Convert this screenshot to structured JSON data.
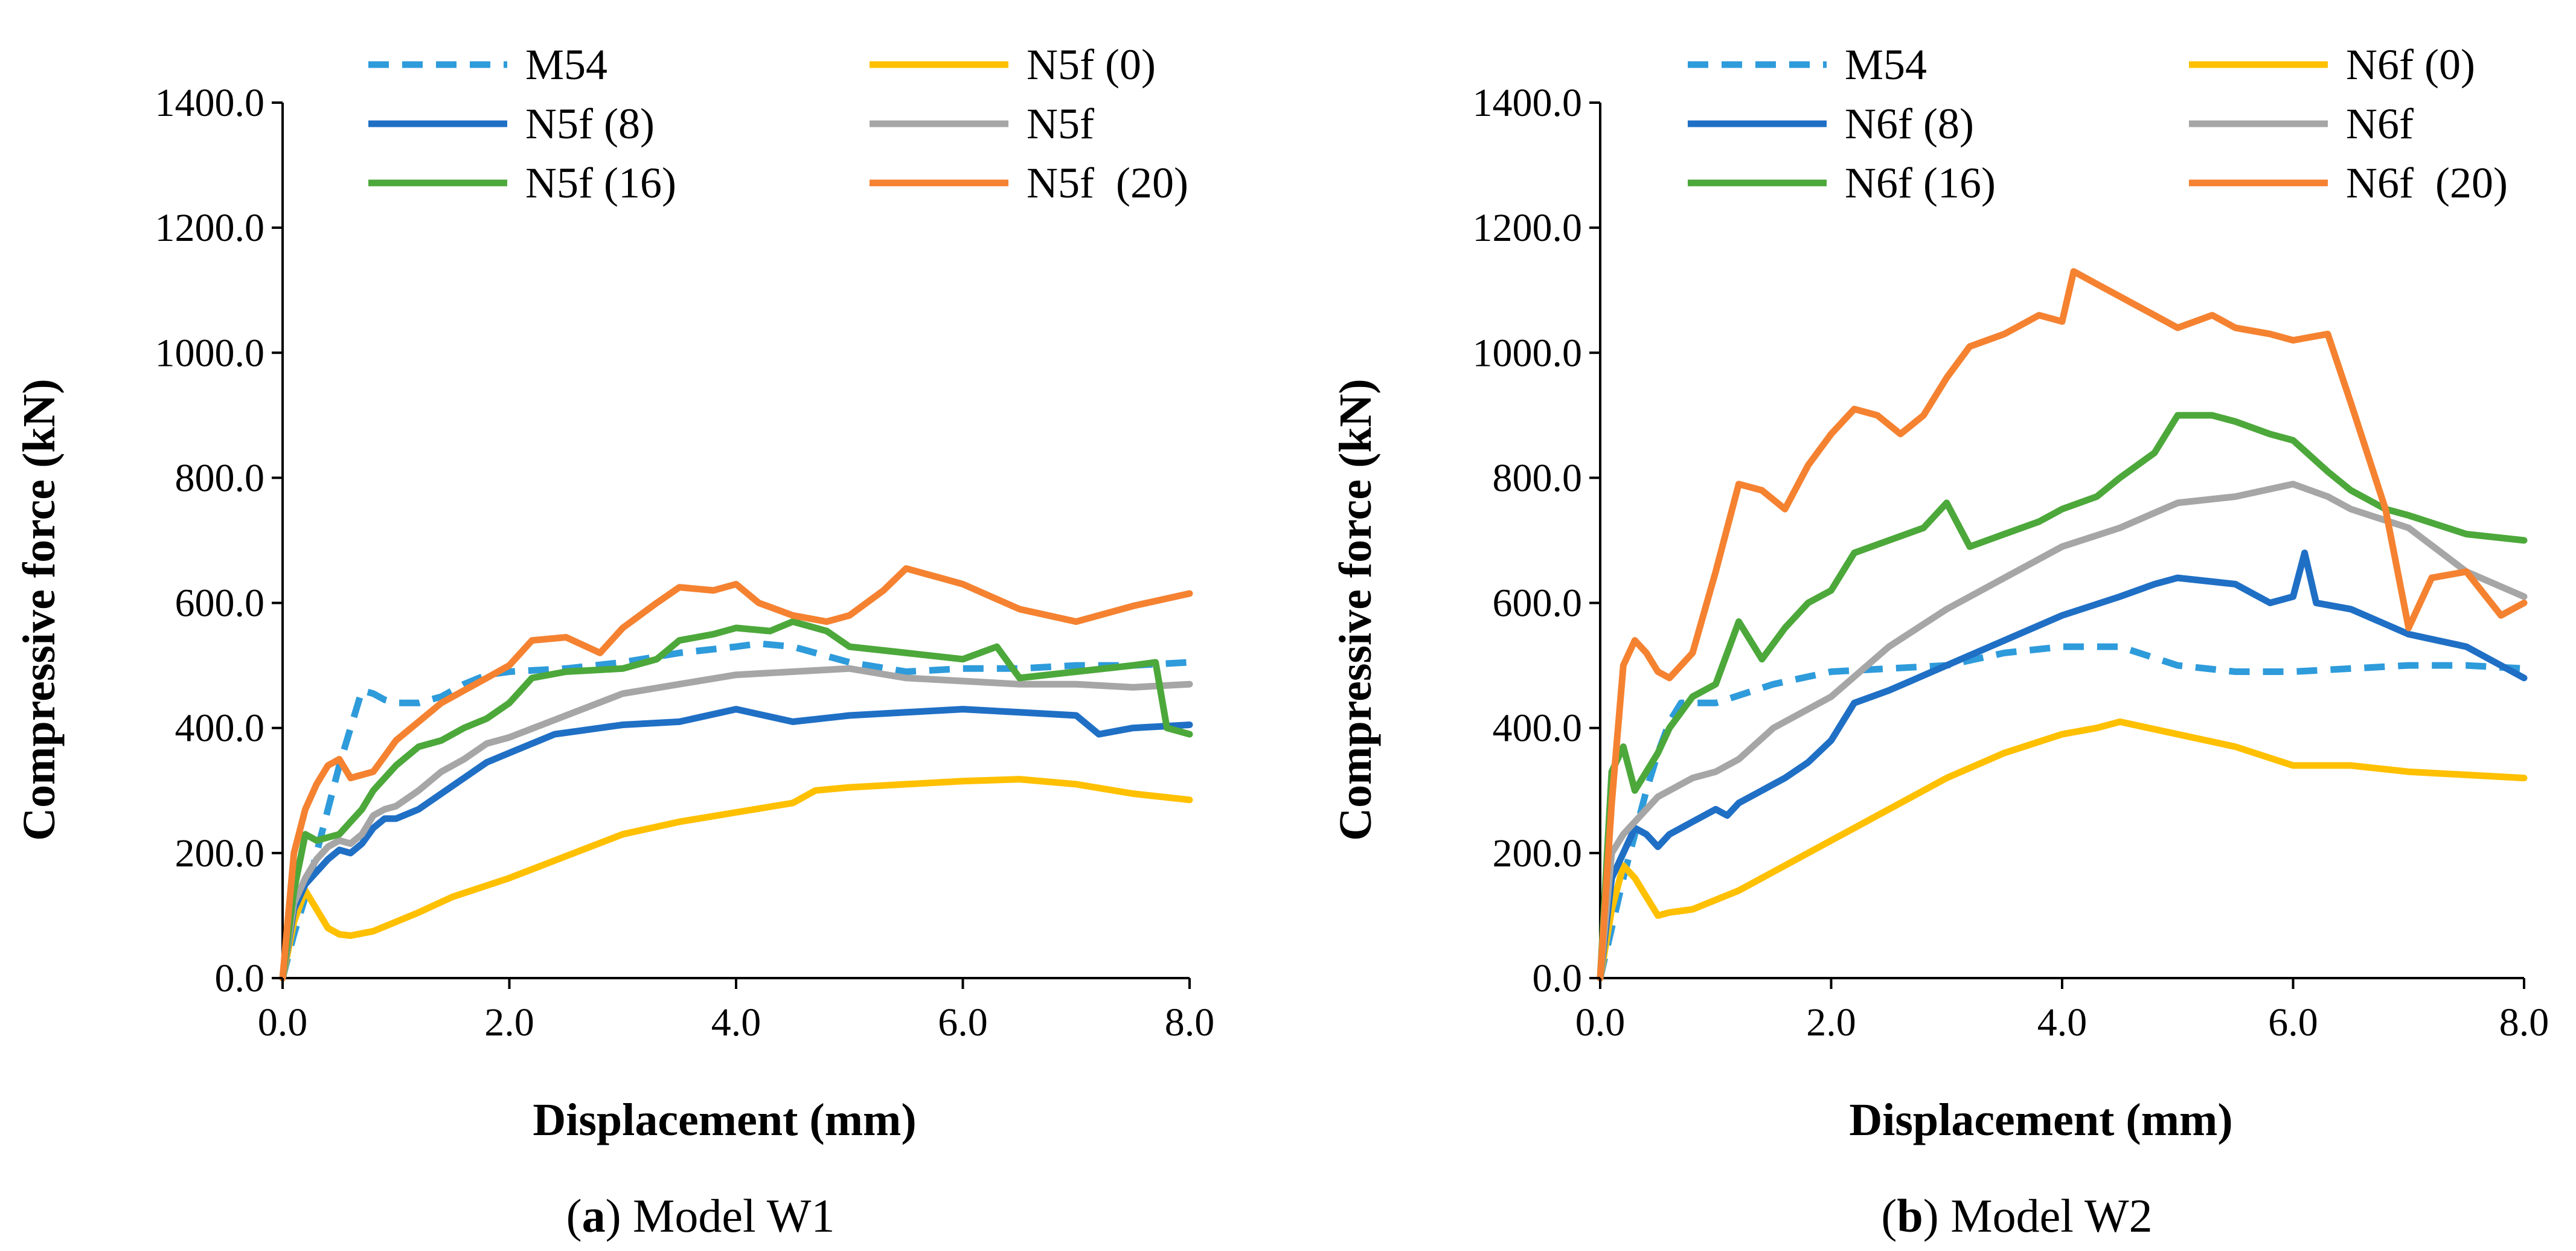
{
  "chart_data": [
    {
      "type": "line",
      "caption_label": "a",
      "caption_text": "Model W1",
      "xlabel": "Displacement (mm)",
      "ylabel": "Compressive force (kN)",
      "xlim": [
        0,
        8
      ],
      "ylim": [
        0,
        1400
      ],
      "xticks": [
        "0.0",
        "2.0",
        "4.0",
        "6.0",
        "8.0"
      ],
      "yticks": [
        "0.0",
        "200.0",
        "400.0",
        "600.0",
        "800.0",
        "1000.0",
        "1200.0",
        "1400.0"
      ],
      "series": [
        {
          "name": "M54",
          "color": "#2E9BDB",
          "dashed": true,
          "x": [
            0,
            0.1,
            0.2,
            0.3,
            0.4,
            0.5,
            0.6,
            0.7,
            0.8,
            0.9,
            1.0,
            1.2,
            1.4,
            1.6,
            1.8,
            2.0,
            2.5,
            3.0,
            3.5,
            4.0,
            4.2,
            4.5,
            5.0,
            5.5,
            6.0,
            6.5,
            7.0,
            7.5,
            8.0
          ],
          "y": [
            0,
            70,
            130,
            200,
            270,
            340,
            400,
            460,
            455,
            445,
            440,
            440,
            450,
            470,
            485,
            490,
            495,
            505,
            520,
            530,
            535,
            530,
            505,
            490,
            495,
            495,
            500,
            500,
            505
          ]
        },
        {
          "name": "N5f (0)",
          "color": "#FFC000",
          "x": [
            0,
            0.1,
            0.2,
            0.3,
            0.4,
            0.5,
            0.6,
            0.8,
            1.0,
            1.2,
            1.5,
            2.0,
            2.5,
            3.0,
            3.5,
            4.0,
            4.5,
            4.7,
            5.0,
            5.5,
            6.0,
            6.5,
            7.0,
            7.5,
            8.0
          ],
          "y": [
            0,
            90,
            140,
            110,
            80,
            70,
            68,
            75,
            90,
            105,
            130,
            160,
            195,
            230,
            250,
            265,
            280,
            300,
            305,
            310,
            315,
            318,
            310,
            295,
            285
          ]
        },
        {
          "name": "N5f (8)",
          "color": "#1F6FC5",
          "x": [
            0,
            0.1,
            0.2,
            0.3,
            0.4,
            0.5,
            0.6,
            0.7,
            0.8,
            0.9,
            1.0,
            1.2,
            1.4,
            1.6,
            1.8,
            2.0,
            2.2,
            2.4,
            2.6,
            2.8,
            3.0,
            3.5,
            4.0,
            4.5,
            5.0,
            5.5,
            6.0,
            6.5,
            7.0,
            7.2,
            7.5,
            8.0
          ],
          "y": [
            0,
            110,
            150,
            170,
            190,
            205,
            200,
            215,
            240,
            255,
            255,
            270,
            295,
            320,
            345,
            360,
            375,
            390,
            395,
            400,
            405,
            410,
            430,
            410,
            420,
            425,
            430,
            425,
            420,
            390,
            400,
            405
          ]
        },
        {
          "name": "N5f",
          "color": "#A6A6A6",
          "x": [
            0,
            0.1,
            0.2,
            0.3,
            0.4,
            0.5,
            0.6,
            0.7,
            0.8,
            0.9,
            1.0,
            1.2,
            1.4,
            1.6,
            1.8,
            2.0,
            2.5,
            3.0,
            3.5,
            4.0,
            4.5,
            5.0,
            5.5,
            6.0,
            6.5,
            7.0,
            7.5,
            8.0
          ],
          "y": [
            0,
            120,
            160,
            190,
            210,
            220,
            215,
            230,
            260,
            270,
            275,
            300,
            330,
            350,
            375,
            385,
            420,
            455,
            470,
            485,
            490,
            495,
            480,
            475,
            470,
            470,
            465,
            470
          ]
        },
        {
          "name": "N5f (16)",
          "color": "#4CA83A",
          "x": [
            0,
            0.1,
            0.2,
            0.3,
            0.4,
            0.5,
            0.6,
            0.7,
            0.8,
            1.0,
            1.2,
            1.4,
            1.6,
            1.8,
            2.0,
            2.2,
            2.5,
            3.0,
            3.3,
            3.5,
            3.8,
            4.0,
            4.3,
            4.5,
            4.8,
            5.0,
            5.5,
            6.0,
            6.3,
            6.5,
            7.0,
            7.5,
            7.7,
            7.8,
            8.0
          ],
          "y": [
            0,
            140,
            230,
            220,
            225,
            230,
            250,
            270,
            300,
            340,
            370,
            380,
            400,
            415,
            440,
            480,
            490,
            495,
            510,
            540,
            550,
            560,
            555,
            570,
            555,
            530,
            520,
            510,
            530,
            480,
            490,
            500,
            505,
            400,
            390
          ]
        },
        {
          "name": "N5f  (20)",
          "color": "#F58231",
          "x": [
            0,
            0.1,
            0.2,
            0.3,
            0.4,
            0.5,
            0.6,
            0.8,
            1.0,
            1.2,
            1.4,
            1.6,
            1.8,
            2.0,
            2.2,
            2.5,
            2.8,
            3.0,
            3.3,
            3.5,
            3.8,
            4.0,
            4.2,
            4.5,
            4.8,
            5.0,
            5.3,
            5.5,
            5.8,
            6.0,
            6.5,
            7.0,
            7.5,
            8.0
          ],
          "y": [
            0,
            200,
            270,
            310,
            340,
            350,
            320,
            330,
            380,
            410,
            440,
            460,
            480,
            500,
            540,
            545,
            520,
            560,
            600,
            625,
            620,
            630,
            600,
            580,
            570,
            580,
            620,
            655,
            640,
            630,
            590,
            570,
            595,
            615
          ]
        }
      ]
    },
    {
      "type": "line",
      "caption_label": "b",
      "caption_text": "Model W2",
      "xlabel": "Displacement (mm)",
      "ylabel": "Compressive force (kN)",
      "xlim": [
        0,
        8
      ],
      "ylim": [
        0,
        1400
      ],
      "xticks": [
        "0.0",
        "2.0",
        "4.0",
        "6.0",
        "8.0"
      ],
      "yticks": [
        "0.0",
        "200.0",
        "400.0",
        "600.0",
        "800.0",
        "1000.0",
        "1200.0",
        "1400.0"
      ],
      "series": [
        {
          "name": "M54",
          "color": "#2E9BDB",
          "dashed": true,
          "x": [
            0,
            0.1,
            0.2,
            0.3,
            0.4,
            0.5,
            0.6,
            0.7,
            0.8,
            1.0,
            1.5,
            2.0,
            2.5,
            3.0,
            3.5,
            4.0,
            4.5,
            5.0,
            5.5,
            6.0,
            6.5,
            7.0,
            7.5,
            8.0
          ],
          "y": [
            0,
            80,
            160,
            230,
            300,
            360,
            410,
            440,
            440,
            440,
            470,
            490,
            495,
            500,
            520,
            530,
            530,
            500,
            490,
            490,
            495,
            500,
            500,
            495
          ]
        },
        {
          "name": "N6f (0)",
          "color": "#FFC000",
          "x": [
            0,
            0.1,
            0.2,
            0.3,
            0.4,
            0.5,
            0.6,
            0.8,
            1.0,
            1.2,
            1.5,
            2.0,
            2.5,
            3.0,
            3.5,
            4.0,
            4.3,
            4.5,
            5.0,
            5.5,
            6.0,
            6.5,
            7.0,
            7.5,
            8.0
          ],
          "y": [
            0,
            110,
            180,
            160,
            130,
            100,
            105,
            110,
            125,
            140,
            170,
            220,
            270,
            320,
            360,
            390,
            400,
            410,
            390,
            370,
            340,
            340,
            330,
            325,
            320
          ]
        },
        {
          "name": "N6f (8)",
          "color": "#1F6FC5",
          "x": [
            0,
            0.1,
            0.2,
            0.3,
            0.4,
            0.5,
            0.6,
            0.8,
            1.0,
            1.1,
            1.2,
            1.4,
            1.6,
            1.8,
            2.0,
            2.2,
            2.5,
            3.0,
            3.5,
            4.0,
            4.5,
            4.8,
            5.0,
            5.5,
            5.8,
            6.0,
            6.1,
            6.2,
            6.5,
            7.0,
            7.5,
            8.0
          ],
          "y": [
            0,
            160,
            200,
            240,
            230,
            210,
            230,
            250,
            270,
            260,
            280,
            300,
            320,
            345,
            380,
            440,
            460,
            500,
            540,
            580,
            610,
            630,
            640,
            630,
            600,
            610,
            680,
            600,
            590,
            550,
            530,
            480
          ]
        },
        {
          "name": "N6f",
          "color": "#A6A6A6",
          "x": [
            0,
            0.1,
            0.2,
            0.3,
            0.4,
            0.5,
            0.6,
            0.7,
            0.8,
            1.0,
            1.2,
            1.5,
            2.0,
            2.5,
            3.0,
            3.5,
            4.0,
            4.5,
            5.0,
            5.5,
            6.0,
            6.3,
            6.5,
            7.0,
            7.5,
            8.0
          ],
          "y": [
            0,
            200,
            230,
            250,
            270,
            290,
            300,
            310,
            320,
            330,
            350,
            400,
            450,
            530,
            590,
            640,
            690,
            720,
            760,
            770,
            790,
            770,
            750,
            720,
            650,
            610
          ]
        },
        {
          "name": "N6f (16)",
          "color": "#4CA83A",
          "x": [
            0,
            0.1,
            0.2,
            0.3,
            0.4,
            0.5,
            0.6,
            0.8,
            1.0,
            1.2,
            1.4,
            1.6,
            1.8,
            2.0,
            2.2,
            2.5,
            2.8,
            3.0,
            3.2,
            3.5,
            3.8,
            4.0,
            4.3,
            4.5,
            4.8,
            5.0,
            5.3,
            5.5,
            5.8,
            6.0,
            6.3,
            6.5,
            6.8,
            7.0,
            7.5,
            8.0
          ],
          "y": [
            0,
            330,
            370,
            300,
            330,
            360,
            400,
            450,
            470,
            570,
            510,
            560,
            600,
            620,
            680,
            700,
            720,
            760,
            690,
            710,
            730,
            750,
            770,
            800,
            840,
            900,
            900,
            890,
            870,
            860,
            810,
            780,
            750,
            740,
            710,
            700
          ]
        },
        {
          "name": "N6f  (20)",
          "color": "#F58231",
          "x": [
            0,
            0.1,
            0.2,
            0.3,
            0.4,
            0.5,
            0.6,
            0.8,
            1.0,
            1.2,
            1.4,
            1.6,
            1.8,
            2.0,
            2.2,
            2.4,
            2.6,
            2.8,
            3.0,
            3.2,
            3.5,
            3.8,
            4.0,
            4.1,
            4.3,
            4.5,
            4.8,
            5.0,
            5.3,
            5.5,
            5.8,
            6.0,
            6.3,
            6.5,
            6.8,
            7.0,
            7.2,
            7.5,
            7.8,
            8.0
          ],
          "y": [
            0,
            280,
            500,
            540,
            520,
            490,
            480,
            520,
            650,
            790,
            780,
            750,
            820,
            870,
            910,
            900,
            870,
            900,
            960,
            1010,
            1030,
            1060,
            1050,
            1130,
            1110,
            1090,
            1060,
            1040,
            1060,
            1040,
            1030,
            1020,
            1030,
            920,
            750,
            560,
            640,
            650,
            580,
            600
          ]
        }
      ]
    }
  ]
}
